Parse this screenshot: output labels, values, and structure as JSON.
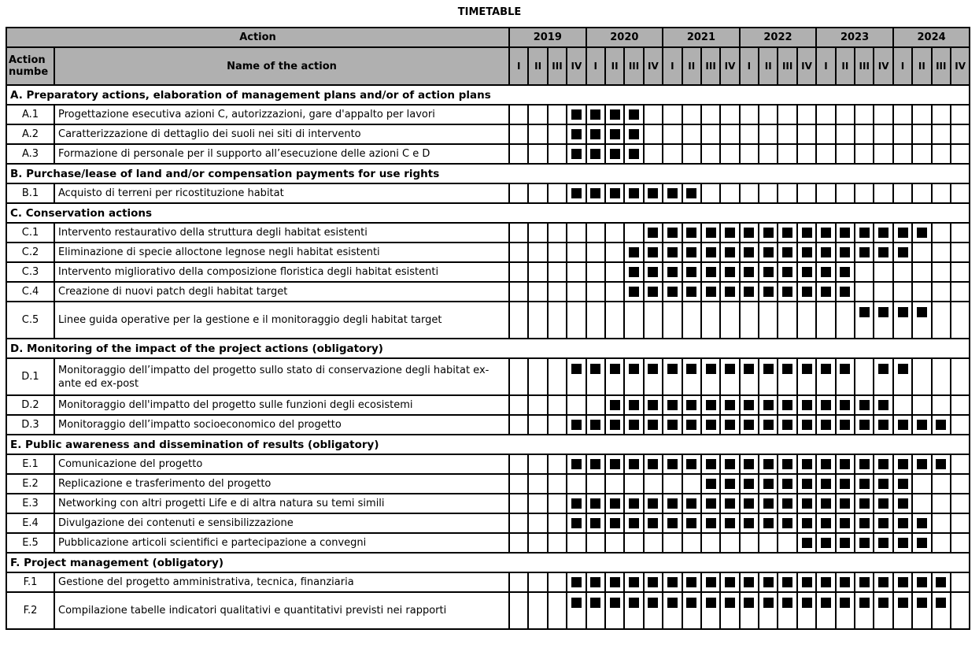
{
  "title": "TIMETABLE",
  "header": {
    "action": "Action",
    "action_number": "Action numbe",
    "name": "Name of the action",
    "years": [
      "2019",
      "2020",
      "2021",
      "2022",
      "2023",
      "2024"
    ],
    "quarters": [
      "I",
      "II",
      "III",
      "IV"
    ]
  },
  "sections": [
    {
      "title": "A. Preparatory actions, elaboration of management plans and/or of action plans",
      "rows": [
        {
          "num": "A.1",
          "name": "Progettazione esecutiva azioni C, autorizzazioni, gare d'appalto per lavori",
          "active": [
            3,
            4,
            5,
            6
          ]
        },
        {
          "num": "A.2",
          "name": "Caratterizzazione di dettaglio dei suoli nei siti di intervento",
          "active": [
            3,
            4,
            5,
            6
          ]
        },
        {
          "num": "A.3",
          "name": "Formazione di personale per il supporto all’esecuzione delle azioni C e D",
          "active": [
            3,
            4,
            5,
            6
          ]
        }
      ]
    },
    {
      "title": "B. Purchase/lease of land and/or compensation payments for use rights",
      "rows": [
        {
          "num": "B.1",
          "name": "Acquisto di terreni per ricostituzione habitat",
          "active": [
            3,
            4,
            5,
            6,
            7,
            8,
            9
          ]
        }
      ]
    },
    {
      "title": "C. Conservation actions",
      "rows": [
        {
          "num": "C.1",
          "name": "Intervento restaurativo della struttura degli habitat esistenti",
          "active": [
            7,
            8,
            9,
            10,
            11,
            12,
            13,
            14,
            15,
            16,
            17,
            18,
            19,
            20,
            21
          ]
        },
        {
          "num": "C.2",
          "name": "Eliminazione di specie alloctone legnose negli habitat esistenti",
          "active": [
            6,
            7,
            8,
            9,
            10,
            11,
            12,
            13,
            14,
            15,
            16,
            17,
            18,
            19,
            20
          ]
        },
        {
          "num": "C.3",
          "name": "Intervento migliorativo della composizione floristica degli habitat esistenti",
          "active": [
            6,
            7,
            8,
            9,
            10,
            11,
            12,
            13,
            14,
            15,
            16,
            17
          ]
        },
        {
          "num": "C.4",
          "name": "Creazione di nuovi patch degli habitat target",
          "active": [
            6,
            7,
            8,
            9,
            10,
            11,
            12,
            13,
            14,
            15,
            16,
            17
          ]
        },
        {
          "num": "C.5",
          "name": "Linee guida operative per la gestione e il monitoraggio degli habitat target",
          "active": [
            18,
            19,
            20,
            21
          ],
          "tall": true
        }
      ]
    },
    {
      "title": "D. Monitoring of the impact of the project actions (obligatory)",
      "rows": [
        {
          "num": "D.1",
          "name": "Monitoraggio dell’impatto del progetto sullo stato di conservazione degli habitat ex-ante ed ex-post",
          "active": [
            3,
            4,
            5,
            6,
            7,
            8,
            9,
            10,
            11,
            12,
            13,
            14,
            15,
            16,
            17,
            19,
            20
          ],
          "tall": true
        },
        {
          "num": "D.2",
          "name": "Monitoraggio dell'impatto del progetto sulle funzioni degli ecosistemi",
          "active": [
            5,
            6,
            7,
            8,
            9,
            10,
            11,
            12,
            13,
            14,
            15,
            16,
            17,
            18,
            19
          ]
        },
        {
          "num": "D.3",
          "name": "Monitoraggio dell’impatto socioeconomico del progetto",
          "active": [
            3,
            4,
            5,
            6,
            7,
            8,
            9,
            10,
            11,
            12,
            13,
            14,
            15,
            16,
            17,
            18,
            19,
            20,
            21,
            22
          ]
        }
      ]
    },
    {
      "title": "E. Public awareness and dissemination of results (obligatory)",
      "rows": [
        {
          "num": "E.1",
          "name": "Comunicazione del progetto",
          "active": [
            3,
            4,
            5,
            6,
            7,
            8,
            9,
            10,
            11,
            12,
            13,
            14,
            15,
            16,
            17,
            18,
            19,
            20,
            21,
            22
          ]
        },
        {
          "num": "E.2",
          "name": "Replicazione e trasferimento del progetto",
          "active": [
            10,
            11,
            12,
            13,
            14,
            15,
            16,
            17,
            18,
            19,
            20
          ]
        },
        {
          "num": "E.3",
          "name": "Networking con altri progetti Life e di altra natura su temi simili",
          "active": [
            3,
            4,
            5,
            6,
            7,
            8,
            9,
            10,
            11,
            12,
            13,
            14,
            15,
            16,
            17,
            18,
            19,
            20
          ]
        },
        {
          "num": "E.4",
          "name": "Divulgazione dei contenuti e sensibilizzazione",
          "active": [
            3,
            4,
            5,
            6,
            7,
            8,
            9,
            10,
            11,
            12,
            13,
            14,
            15,
            16,
            17,
            18,
            19,
            20,
            21
          ]
        },
        {
          "num": "E.5",
          "name": "Pubblicazione articoli scientifici e partecipazione a convegni",
          "active": [
            15,
            16,
            17,
            18,
            19,
            20,
            21
          ]
        }
      ]
    },
    {
      "title": "F. Project management (obligatory)",
      "rows": [
        {
          "num": "F.1",
          "name": "Gestione del progetto amministrativa, tecnica, finanziaria",
          "active": [
            3,
            4,
            5,
            6,
            7,
            8,
            9,
            10,
            11,
            12,
            13,
            14,
            15,
            16,
            17,
            18,
            19,
            20,
            21,
            22
          ]
        },
        {
          "num": "F.2",
          "name": "Compilazione tabelle indicatori qualitativi e quantitativi previsti nei rapporti",
          "active": [
            3,
            4,
            5,
            6,
            7,
            8,
            9,
            10,
            11,
            12,
            13,
            14,
            15,
            16,
            17,
            18,
            19,
            20,
            21,
            22
          ],
          "tall": true
        }
      ]
    }
  ]
}
